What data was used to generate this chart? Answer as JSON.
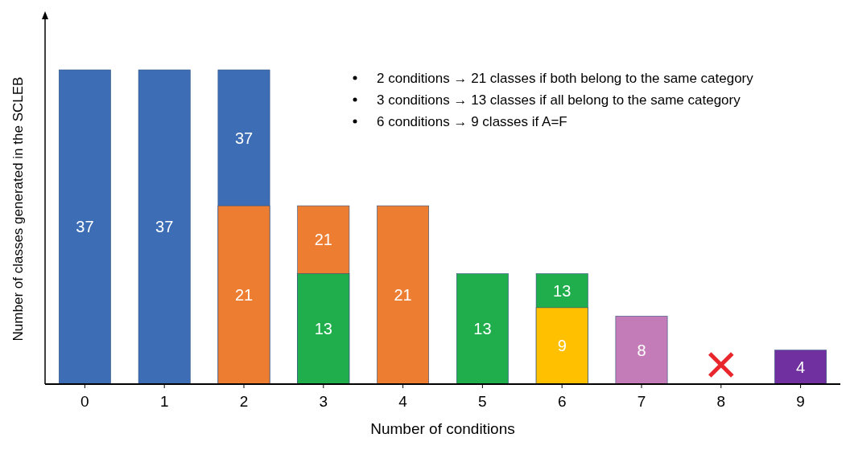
{
  "chart_data": {
    "type": "bar",
    "data_labels": true,
    "categories": [
      "0",
      "1",
      "2",
      "3",
      "4",
      "5",
      "6",
      "7",
      "8",
      "9"
    ],
    "xlabel": "Number of conditions",
    "ylabel": "Number of classes generated in the SCLEB",
    "series": [
      {
        "color": "#3c6db5",
        "values": [
          37,
          37,
          37,
          null,
          null,
          null,
          null,
          null,
          null,
          null
        ]
      },
      {
        "color": "#ed7d31",
        "values": [
          null,
          null,
          21,
          21,
          21,
          null,
          null,
          null,
          null,
          null
        ]
      },
      {
        "color": "#1fae4b",
        "values": [
          null,
          null,
          null,
          13,
          null,
          13,
          13,
          null,
          null,
          null
        ]
      },
      {
        "color": "#ffc000",
        "values": [
          null,
          null,
          null,
          null,
          null,
          null,
          9,
          null,
          null,
          null
        ]
      },
      {
        "color": "#c47cb8",
        "values": [
          null,
          null,
          null,
          null,
          null,
          null,
          null,
          8,
          null,
          null
        ]
      },
      {
        "color": "#7030a0",
        "values": [
          null,
          null,
          null,
          null,
          null,
          null,
          null,
          null,
          null,
          4
        ]
      }
    ],
    "annotations": [
      "2 conditions → 21 classes if both belong to the same category",
      "3 conditions → 13 classes if all belong to the same category",
      "6 conditions → 9 classes if A=F"
    ]
  }
}
